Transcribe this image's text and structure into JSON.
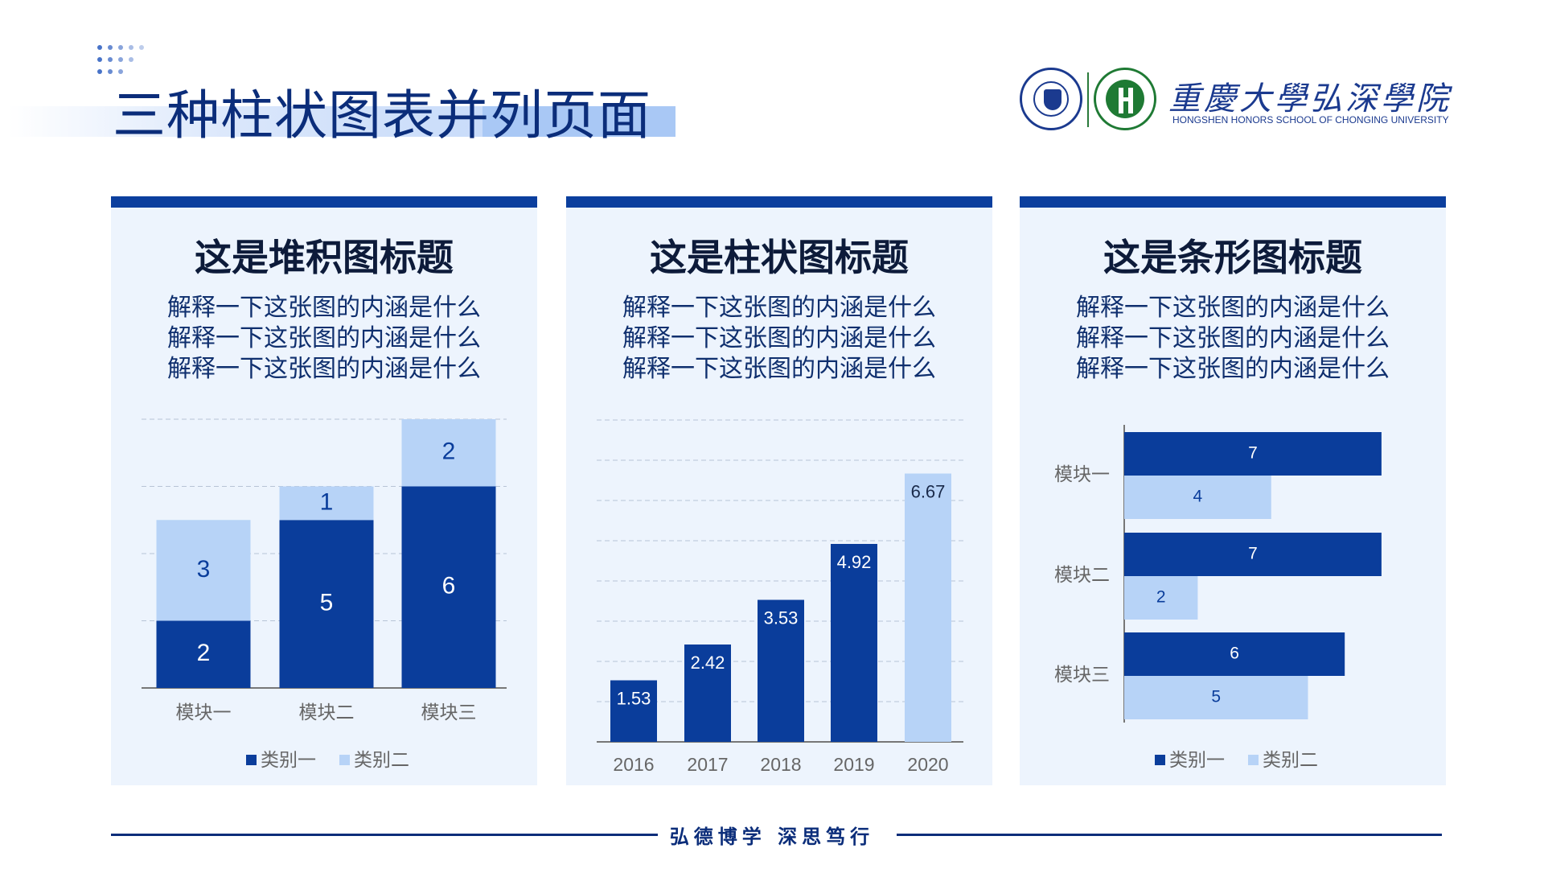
{
  "page": {
    "title": "三种柱状图表并列页面",
    "footer_slogan": "弘德博学  深思笃行"
  },
  "logo": {
    "name": "重慶大學弘深學院",
    "subtitle": "HONGSHEN HONORS SCHOOL OF CHONGING UNIVERSITY",
    "brand_color": "#1b3a8f",
    "secondary_color": "#1f7a34"
  },
  "colors": {
    "category_1": "#0a3d9b",
    "category_2": "#b7d3f7",
    "panel_bg": "#edf4fd",
    "accent": "#0b3f9e"
  },
  "panels": [
    {
      "title": "这是堆积图标题",
      "desc": [
        "解释一下这张图的内涵是什么",
        "解释一下这张图的内涵是什么",
        "解释一下这张图的内涵是什么"
      ]
    },
    {
      "title": "这是柱状图标题",
      "desc": [
        "解释一下这张图的内涵是什么",
        "解释一下这张图的内涵是什么",
        "解释一下这张图的内涵是什么"
      ]
    },
    {
      "title": "这是条形图标题",
      "desc": [
        "解释一下这张图的内涵是什么",
        "解释一下这张图的内涵是什么",
        "解释一下这张图的内涵是什么"
      ]
    }
  ],
  "chart_data": [
    {
      "type": "bar",
      "stacked": true,
      "categories": [
        "模块一",
        "模块二",
        "模块三"
      ],
      "series": [
        {
          "name": "类别一",
          "values": [
            2,
            5,
            6
          ]
        },
        {
          "name": "类别二",
          "values": [
            3,
            1,
            2
          ]
        }
      ],
      "ylim": [
        0,
        8
      ],
      "grid": true,
      "legend": "bottom",
      "data_labels": true
    },
    {
      "type": "bar",
      "categories": [
        "2016",
        "2017",
        "2018",
        "2019",
        "2020"
      ],
      "values": [
        1.53,
        2.42,
        3.53,
        4.92,
        6.67
      ],
      "highlight_index": 4,
      "ylim": [
        0,
        8
      ],
      "grid": true,
      "data_labels": true
    },
    {
      "type": "bar",
      "orientation": "horizontal",
      "categories": [
        "模块一",
        "模块二",
        "模块三"
      ],
      "series": [
        {
          "name": "类别一",
          "values": [
            7,
            7,
            6
          ]
        },
        {
          "name": "类别二",
          "values": [
            4,
            2,
            5
          ]
        }
      ],
      "xlim": [
        0,
        8
      ],
      "legend": "bottom",
      "data_labels": true
    }
  ]
}
